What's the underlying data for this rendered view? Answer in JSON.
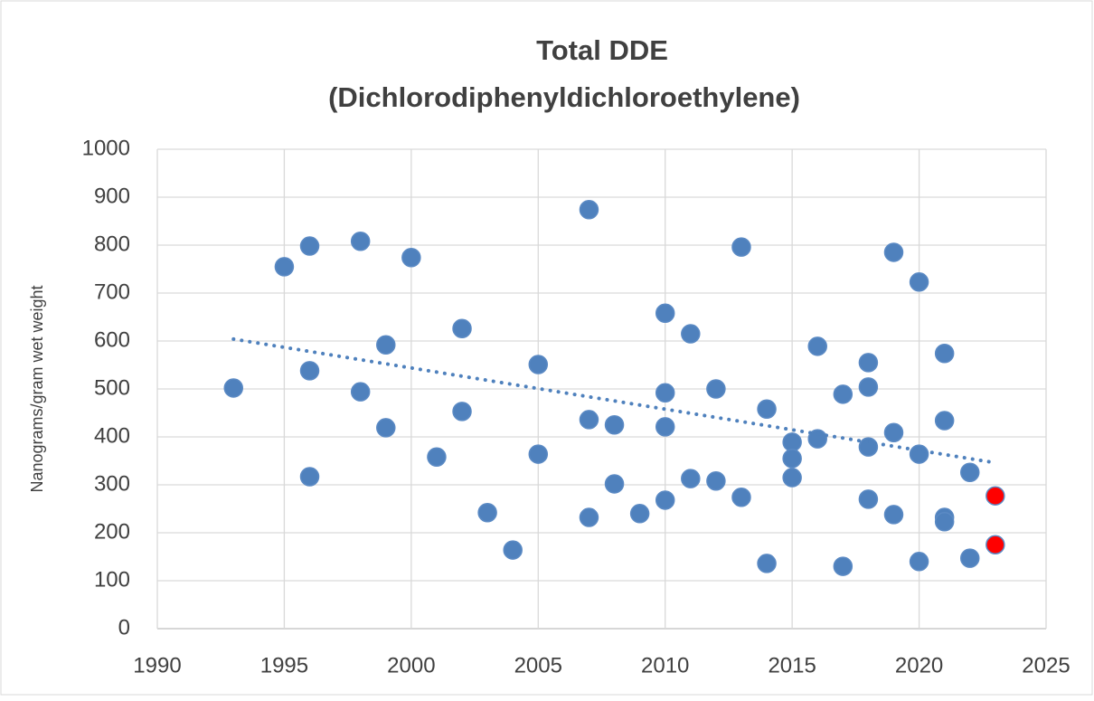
{
  "chart_data": {
    "type": "scatter",
    "title": [
      "Total DDE",
      "(Dichlorodiphenyldichloroethylene)"
    ],
    "ylabel": "Nanograms/gram wet weight",
    "xlim": [
      1990,
      2025
    ],
    "xticks": [
      1990,
      1995,
      2000,
      2005,
      2010,
      2015,
      2020,
      2025
    ],
    "ylim": [
      0,
      1000
    ],
    "yticks": [
      0,
      100,
      200,
      300,
      400,
      500,
      600,
      700,
      800,
      900,
      1000
    ],
    "grid": true,
    "series": [
      {
        "color": "#4f81bd",
        "style": "marker",
        "x": [
          1993,
          1995,
          1996,
          1996,
          1996,
          1998,
          1998,
          1999,
          1999,
          2000,
          2001,
          2002,
          2002,
          2003,
          2004,
          2005,
          2005,
          2007,
          2007,
          2007,
          2008,
          2008,
          2009,
          2010,
          2010,
          2010,
          2010,
          2011,
          2011,
          2012,
          2012,
          2013,
          2013,
          2014,
          2014,
          2015,
          2015,
          2015,
          2016,
          2016,
          2017,
          2017,
          2018,
          2018,
          2018,
          2018,
          2019,
          2019,
          2019,
          2020,
          2020,
          2020,
          2021,
          2021,
          2021,
          2021,
          2022,
          2022
        ],
        "values": [
          502,
          755,
          798,
          538,
          317,
          808,
          494,
          592,
          419,
          774,
          358,
          626,
          453,
          242,
          164,
          551,
          364,
          874,
          436,
          232,
          425,
          302,
          240,
          658,
          492,
          421,
          268,
          615,
          313,
          500,
          308,
          796,
          274,
          458,
          136,
          389,
          355,
          315,
          589,
          396,
          489,
          130,
          555,
          504,
          379,
          270,
          785,
          409,
          238,
          723,
          364,
          140,
          574,
          434,
          232,
          223,
          326,
          147
        ]
      },
      {
        "color": "#ff0000",
        "style": "marker",
        "x": [
          2023,
          2023
        ],
        "values": [
          277,
          175
        ]
      },
      {
        "color": "#4f81bd",
        "style": "dotted-line",
        "x": [
          1993,
          2023
        ],
        "values": [
          604,
          346
        ]
      }
    ]
  }
}
